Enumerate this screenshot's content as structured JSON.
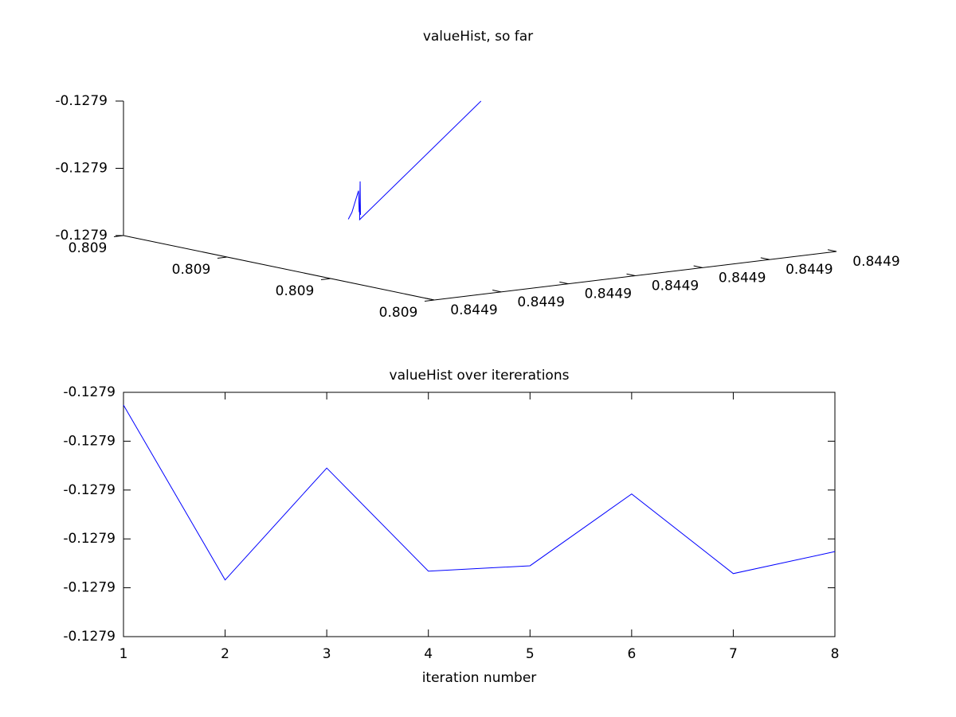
{
  "chart_data": [
    {
      "type": "line3d",
      "title": "valueHist, so far",
      "color": "#0000ff",
      "x": [
        0.80900127,
        0.80900037,
        0.80900178,
        0.80900043,
        0.80900045,
        0.80900146,
        0.80900027,
        0.80900096
      ],
      "y": [
        0.84490337,
        0.84490295,
        0.84490078,
        0.84490287,
        0.84490282,
        0.84490125,
        0.84490299,
        0.84490187
      ],
      "z": [
        -0.12789776,
        -0.12790134,
        -0.12789905,
        -0.12790116,
        -0.12790105,
        -0.12789958,
        -0.12790121,
        -0.12790076
      ],
      "xlim": [
        0.809,
        0.809003
      ],
      "xticks": [
        0.809,
        {
          "value": 0.809001,
          "label": "0.809"
        },
        {
          "value": 0.809002,
          "label": "0.809"
        },
        {
          "value": 0.809003,
          "label": "0.809"
        }
      ],
      "ylim": [
        0.8449,
        0.844906
      ],
      "yticks": [
        0.8449,
        {
          "value": 0.844901,
          "label": "0.8449"
        },
        {
          "value": 0.844902,
          "label": "0.8449"
        },
        {
          "value": 0.844903,
          "label": "0.8449"
        },
        {
          "value": 0.844904,
          "label": "0.8449"
        },
        {
          "value": 0.844905,
          "label": "0.8449"
        },
        {
          "value": 0.844906,
          "label": "0.8449"
        }
      ],
      "zlim": [
        -0.12790134,
        -0.12789776
      ],
      "zticks": [
        {
          "value": -0.12790134,
          "label": "-0.1279"
        },
        {
          "value": -0.12789955,
          "label": "-0.1279"
        },
        {
          "value": -0.12789776,
          "label": "-0.1279"
        }
      ]
    },
    {
      "type": "line",
      "title": "valueHist over itererations",
      "xlabel": "iteration number",
      "color": "#0000ff",
      "x": [
        1,
        2,
        3,
        4,
        5,
        6,
        7,
        8
      ],
      "values": [
        -0.12789776,
        -0.12790134,
        -0.12789905,
        -0.12790116,
        -0.12790105,
        -0.12789958,
        -0.12790121,
        -0.12790076
      ],
      "xlim": [
        1,
        8
      ],
      "xticks": [
        1,
        2,
        3,
        4,
        5,
        6,
        7,
        8
      ],
      "ylim": [
        -0.1279025,
        -0.1278975
      ],
      "yticks": [
        {
          "value": -0.1279025,
          "label": "-0.1279"
        },
        {
          "value": -0.1279015,
          "label": "-0.1279"
        },
        {
          "value": -0.1279005,
          "label": "-0.1279"
        },
        {
          "value": -0.1278995,
          "label": "-0.1279"
        },
        {
          "value": -0.1278985,
          "label": "-0.1279"
        },
        {
          "value": -0.1278975,
          "label": "-0.1279"
        }
      ]
    }
  ]
}
